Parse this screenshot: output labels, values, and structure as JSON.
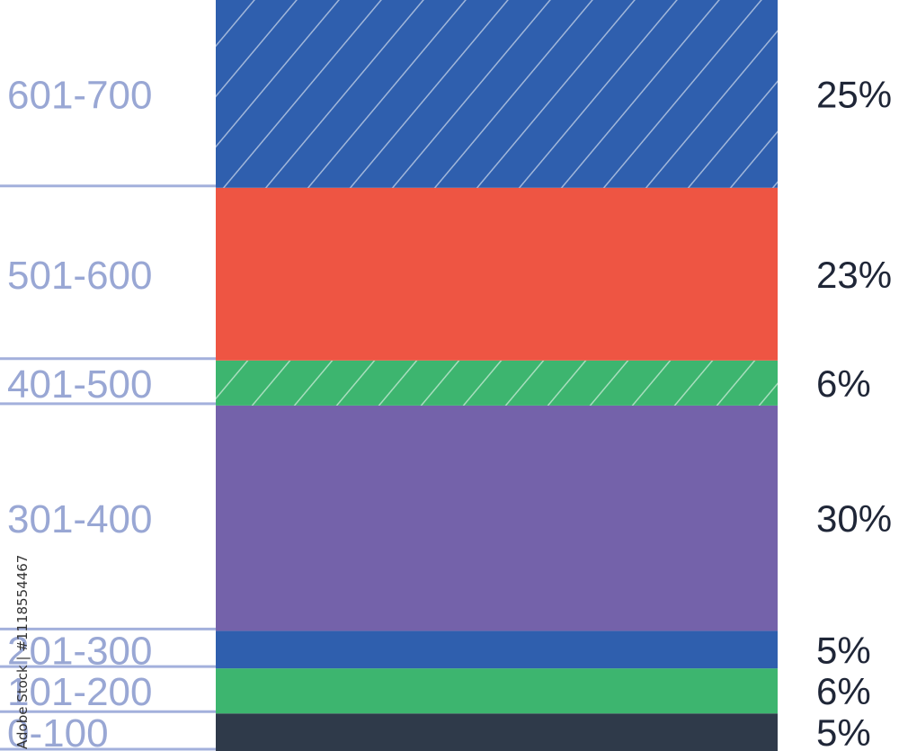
{
  "chart_data": {
    "type": "bar",
    "orientation": "stacked-column",
    "categories": [
      "0-100",
      "101-200",
      "201-300",
      "301-400",
      "401-500",
      "501-600",
      "601-700"
    ],
    "values": [
      5,
      6,
      5,
      30,
      6,
      23,
      25
    ],
    "value_labels": [
      "5%",
      "6%",
      "5%",
      "30%",
      "6%",
      "23%",
      "25%"
    ],
    "colors": [
      "#2f3a4a",
      "#3db56f",
      "#2f5fae",
      "#7462aa",
      "#3db56f",
      "#ee5543",
      "#2f5fae"
    ],
    "hatched": [
      false,
      false,
      false,
      false,
      true,
      false,
      true
    ],
    "title": "",
    "xlabel": "",
    "ylabel": "",
    "legend": "none",
    "grid": false
  },
  "watermark": {
    "side_text": "Adobe Stock | #1118554467"
  }
}
